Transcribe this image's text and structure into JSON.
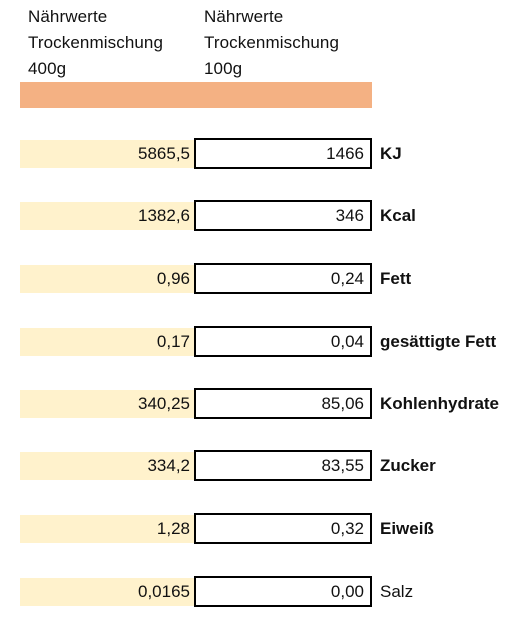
{
  "header": {
    "left": [
      "Nährwerte",
      "Trockenmischung",
      "400g"
    ],
    "right": [
      "Nährwerte",
      "Trockenmischung",
      "100g"
    ]
  },
  "colors": {
    "header_bar": "#f4b183",
    "value_fill": "#fff2cc",
    "border": "#000000"
  },
  "rows": [
    {
      "value_400g": "5865,5",
      "value_100g": "1466",
      "label": "KJ",
      "bold": true
    },
    {
      "value_400g": "1382,6",
      "value_100g": "346",
      "label": "Kcal",
      "bold": true
    },
    {
      "value_400g": "0,96",
      "value_100g": "0,24",
      "label": "Fett",
      "bold": true
    },
    {
      "value_400g": "0,17",
      "value_100g": "0,04",
      "label": "gesättigte Fett",
      "bold": true
    },
    {
      "value_400g": "340,25",
      "value_100g": "85,06",
      "label": "Kohlenhydrate",
      "bold": true
    },
    {
      "value_400g": "334,2",
      "value_100g": "83,55",
      "label": "Zucker",
      "bold": true
    },
    {
      "value_400g": "1,28",
      "value_100g": "0,32",
      "label": "Eiweiß",
      "bold": true
    },
    {
      "value_400g": "0,0165",
      "value_100g": "0,00",
      "label": "Salz",
      "bold": false
    }
  ]
}
